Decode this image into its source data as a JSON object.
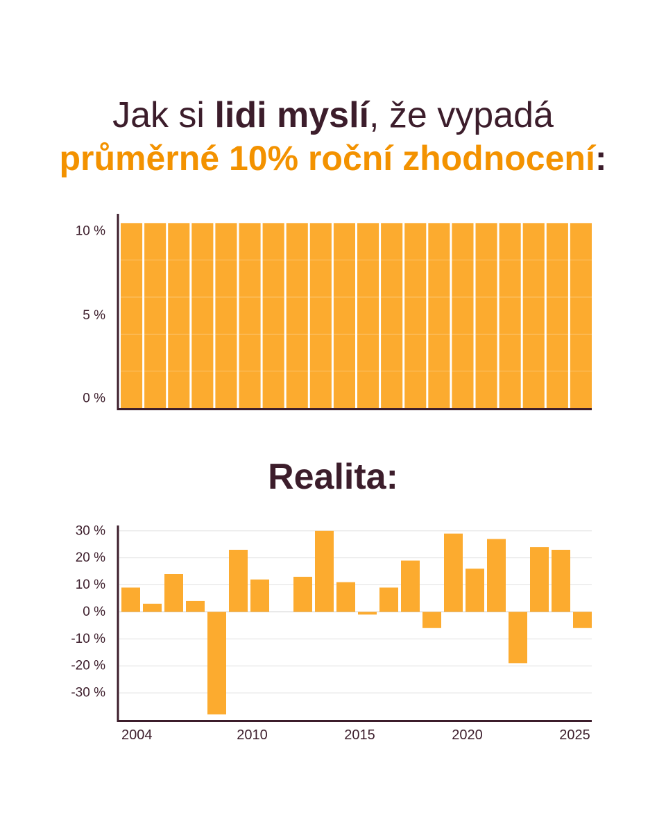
{
  "heading": {
    "line1_regular_start": "Jak si ",
    "line1_bold": "lidi myslí",
    "line1_regular_end": ", že vypadá",
    "line2_accent": "průměrné 10% roční zhodnocení",
    "line2_end": ":"
  },
  "reality_heading": "Realita:",
  "colors": {
    "text": "#3c1d2b",
    "accent": "#f39200",
    "bar": "#fcab2f",
    "grid": "#e0e0e0",
    "zero_line": "#c9c9c9"
  },
  "chart_data": [
    {
      "type": "bar",
      "values": [
        10,
        10,
        10,
        10,
        10,
        10,
        10,
        10,
        10,
        10,
        10,
        10,
        10,
        10,
        10,
        10,
        10,
        10,
        10,
        10
      ],
      "ylim": [
        0,
        10.5
      ],
      "yticks": [
        10,
        5,
        0
      ],
      "ytick_labels": [
        "10 %",
        "5 %",
        "0 %"
      ],
      "grid": true,
      "gridlines": [
        2,
        4,
        6,
        8
      ]
    },
    {
      "type": "bar",
      "x": [
        2004,
        2005,
        2006,
        2007,
        2008,
        2009,
        2010,
        2011,
        2012,
        2013,
        2014,
        2015,
        2016,
        2017,
        2018,
        2019,
        2020,
        2021,
        2022,
        2023,
        2024,
        2025
      ],
      "values": [
        9,
        3,
        14,
        4,
        -38,
        23,
        12,
        0,
        13,
        30,
        11,
        -1,
        9,
        19,
        -6,
        29,
        16,
        27,
        -19,
        24,
        23,
        -6
      ],
      "xticks": [
        2004,
        2010,
        2015,
        2020,
        2025
      ],
      "xtick_labels": [
        "2004",
        "2010",
        "2015",
        "2020",
        "2025"
      ],
      "ylim": [
        -40,
        32
      ],
      "yticks": [
        30,
        20,
        10,
        0,
        -10,
        -20,
        -30
      ],
      "ytick_labels": [
        "30 %",
        "20 %",
        "10 %",
        "0 %",
        "-10 %",
        "-20 %",
        "-30 %"
      ],
      "grid": true
    }
  ]
}
